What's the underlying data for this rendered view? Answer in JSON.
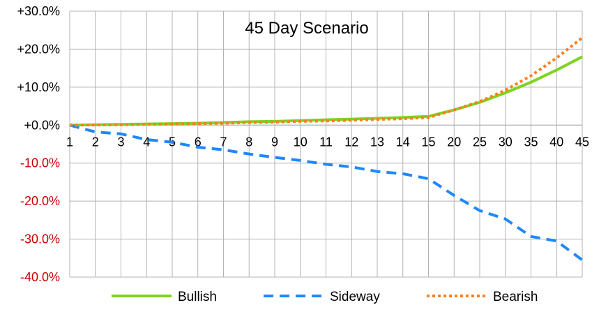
{
  "chart_data": {
    "type": "line",
    "title": "45 Day Scenario",
    "xlabel": "",
    "ylabel": "",
    "categories": [
      "1",
      "2",
      "3",
      "4",
      "5",
      "6",
      "7",
      "8",
      "9",
      "10",
      "11",
      "12",
      "13",
      "14",
      "15",
      "20",
      "25",
      "30",
      "35",
      "40",
      "45"
    ],
    "ylim": [
      -40,
      30
    ],
    "yticks": [
      "+30.0%",
      "+20.0%",
      "+10.0%",
      "+0.0%",
      "-10.0%",
      "-20.0%",
      "-30.0%",
      "-40.0%"
    ],
    "ytick_values": [
      30,
      20,
      10,
      0,
      -10,
      -20,
      -30,
      -40
    ],
    "grid": true,
    "legend_position": "bottom",
    "positive_tick_color": "#000000",
    "negative_tick_color": "#cc0000",
    "series": [
      {
        "name": "Bullish",
        "color": "#7ed321",
        "style": "solid",
        "values": [
          0,
          0.1,
          0.2,
          0.3,
          0.4,
          0.5,
          0.7,
          0.9,
          1.0,
          1.2,
          1.4,
          1.6,
          1.8,
          2.0,
          2.3,
          4.0,
          6.0,
          8.5,
          11.3,
          14.5,
          18.0
        ]
      },
      {
        "name": "Sideway",
        "color": "#1e88ff",
        "style": "dashed",
        "values": [
          0,
          -1.8,
          -2.3,
          -3.8,
          -4.5,
          -5.8,
          -6.5,
          -7.6,
          -8.5,
          -9.3,
          -10.3,
          -11.0,
          -12.2,
          -12.8,
          -14.1,
          -18.5,
          -22.5,
          -24.7,
          -29.3,
          -30.5,
          -35.5
        ]
      },
      {
        "name": "Bearish",
        "color": "#ff7f1e",
        "style": "dotted",
        "values": [
          0,
          0.05,
          0.1,
          0.2,
          0.3,
          0.4,
          0.5,
          0.7,
          0.8,
          1.0,
          1.1,
          1.3,
          1.5,
          1.7,
          2.0,
          4.0,
          6.2,
          9.2,
          13.0,
          17.7,
          23.0
        ]
      }
    ]
  }
}
